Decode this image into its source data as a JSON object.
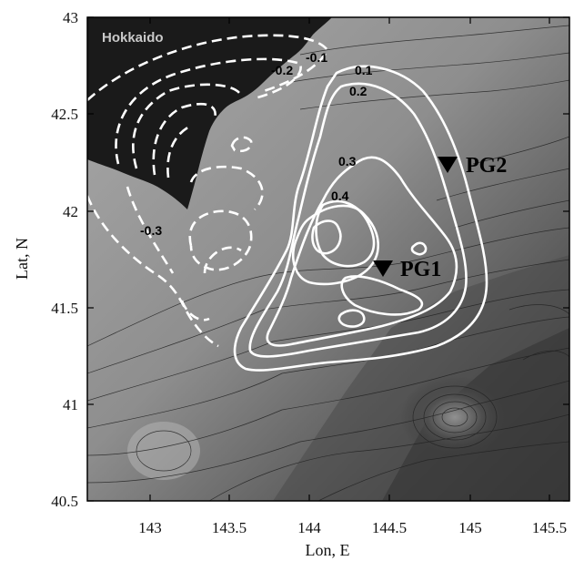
{
  "map": {
    "land_label": "Hokkaido",
    "x_axis": {
      "title": "Lon, E",
      "ticks": [
        "143",
        "143.5",
        "144",
        "144.5",
        "145",
        "145.5"
      ],
      "range": [
        142.6,
        145.6
      ]
    },
    "y_axis": {
      "title": "Lat, N",
      "ticks": [
        "40.5",
        "41",
        "41.5",
        "42",
        "42.5",
        "43"
      ],
      "range": [
        40.5,
        43.0
      ]
    },
    "contour_labels": [
      "-0.1",
      "-0.2",
      "-0.3",
      "0.1",
      "0.2",
      "0.3",
      "0.4"
    ],
    "stations": [
      {
        "name": "PG1",
        "lon": 144.45,
        "lat": 41.7
      },
      {
        "name": "PG2",
        "lon": 144.85,
        "lat": 42.24
      }
    ],
    "colors": {
      "land": "#1a1a1a",
      "ocean_light": "#a8a8a8",
      "ocean_dark": "#3a3a3a",
      "positive_contour": "#ffffff",
      "negative_contour": "#ffffff"
    }
  }
}
